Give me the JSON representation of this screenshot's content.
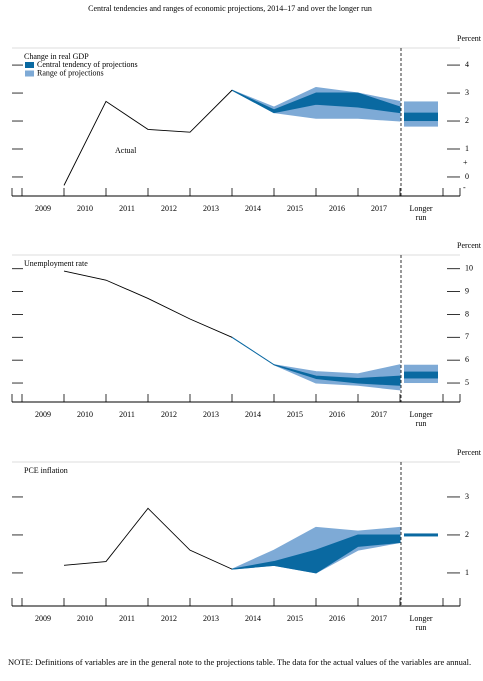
{
  "title": "Central tendencies and ranges of economic projections, 2014–17 and over the longer run",
  "note": "NOTE: Definitions of variables are in the general note to the projections table. The data for the actual values of the variables are annual.",
  "chart_data": [
    {
      "type": "fan",
      "title": "Change in real GDP",
      "unit_label": "Percent",
      "annotation": "Actual",
      "categories": [
        "2009",
        "2010",
        "2011",
        "2012",
        "2013",
        "2014",
        "2015",
        "2016",
        "2017",
        "Longer run"
      ],
      "actual": {
        "color": "#000000",
        "values": [
          -0.3,
          2.7,
          1.7,
          1.6,
          3.1,
          null,
          null,
          null,
          null,
          null
        ]
      },
      "series": [
        {
          "name": "Central tendency of projections",
          "color": "#0a69a1",
          "low": [
            null,
            null,
            null,
            null,
            null,
            2.3,
            2.6,
            2.5,
            2.3,
            2.0
          ],
          "high": [
            null,
            null,
            null,
            null,
            null,
            2.4,
            3.0,
            3.0,
            2.5,
            2.3
          ]
        },
        {
          "name": "Range of projections",
          "color": "#7eaad6",
          "low": [
            null,
            null,
            null,
            null,
            null,
            2.3,
            2.1,
            2.1,
            2.0,
            1.8
          ],
          "high": [
            null,
            null,
            null,
            null,
            null,
            2.5,
            3.2,
            3.0,
            2.7,
            2.7
          ]
        }
      ],
      "ylim": [
        -0.68,
        4.61
      ],
      "yticks": [
        0,
        1,
        2,
        3,
        4
      ],
      "sign_labels": [
        {
          "value": 0.5,
          "label": "+"
        },
        {
          "value": -0.4,
          "label": "-"
        }
      ]
    },
    {
      "type": "fan",
      "title": "Unemployment rate",
      "unit_label": "Percent",
      "categories": [
        "2009",
        "2010",
        "2011",
        "2012",
        "2013",
        "2014",
        "2015",
        "2016",
        "2017",
        "Longer run"
      ],
      "actual": {
        "color": "#000000",
        "values": [
          9.9,
          9.5,
          8.7,
          7.8,
          7.0,
          null,
          null,
          null,
          null,
          null
        ]
      },
      "series": [
        {
          "color": "#0a69a1",
          "low": [
            null,
            null,
            null,
            null,
            null,
            5.8,
            5.2,
            5.0,
            4.9,
            5.2
          ],
          "high": [
            null,
            null,
            null,
            null,
            null,
            5.8,
            5.3,
            5.2,
            5.3,
            5.5
          ]
        },
        {
          "color": "#7eaad6",
          "low": [
            null,
            null,
            null,
            null,
            null,
            5.8,
            5.0,
            4.9,
            4.7,
            5.0
          ],
          "high": [
            null,
            null,
            null,
            null,
            null,
            5.8,
            5.5,
            5.4,
            5.8,
            5.8
          ]
        }
      ],
      "ylim": [
        4.17,
        10.6
      ],
      "yticks": [
        5,
        6,
        7,
        8,
        9,
        10
      ]
    },
    {
      "type": "fan",
      "title": "PCE inflation",
      "unit_label": "Percent",
      "categories": [
        "2009",
        "2010",
        "2011",
        "2012",
        "2013",
        "2014",
        "2015",
        "2016",
        "2017",
        "Longer run"
      ],
      "actual": {
        "color": "#000000",
        "values": [
          1.2,
          1.3,
          2.7,
          1.6,
          1.1,
          null,
          null,
          null,
          null,
          null
        ]
      },
      "series": [
        {
          "color": "#0a69a1",
          "low": [
            null,
            null,
            null,
            null,
            null,
            1.2,
            1.0,
            1.7,
            1.8,
            2.0
          ],
          "high": [
            null,
            null,
            null,
            null,
            null,
            1.3,
            1.6,
            2.0,
            2.0,
            2.0
          ]
        },
        {
          "color": "#7eaad6",
          "low": [
            null,
            null,
            null,
            null,
            null,
            1.2,
            1.0,
            1.6,
            1.8,
            2.0
          ],
          "high": [
            null,
            null,
            null,
            null,
            null,
            1.6,
            2.2,
            2.1,
            2.2,
            2.0
          ]
        }
      ],
      "ylim": [
        0.13,
        3.92
      ],
      "yticks": [
        1,
        2,
        3
      ]
    }
  ]
}
